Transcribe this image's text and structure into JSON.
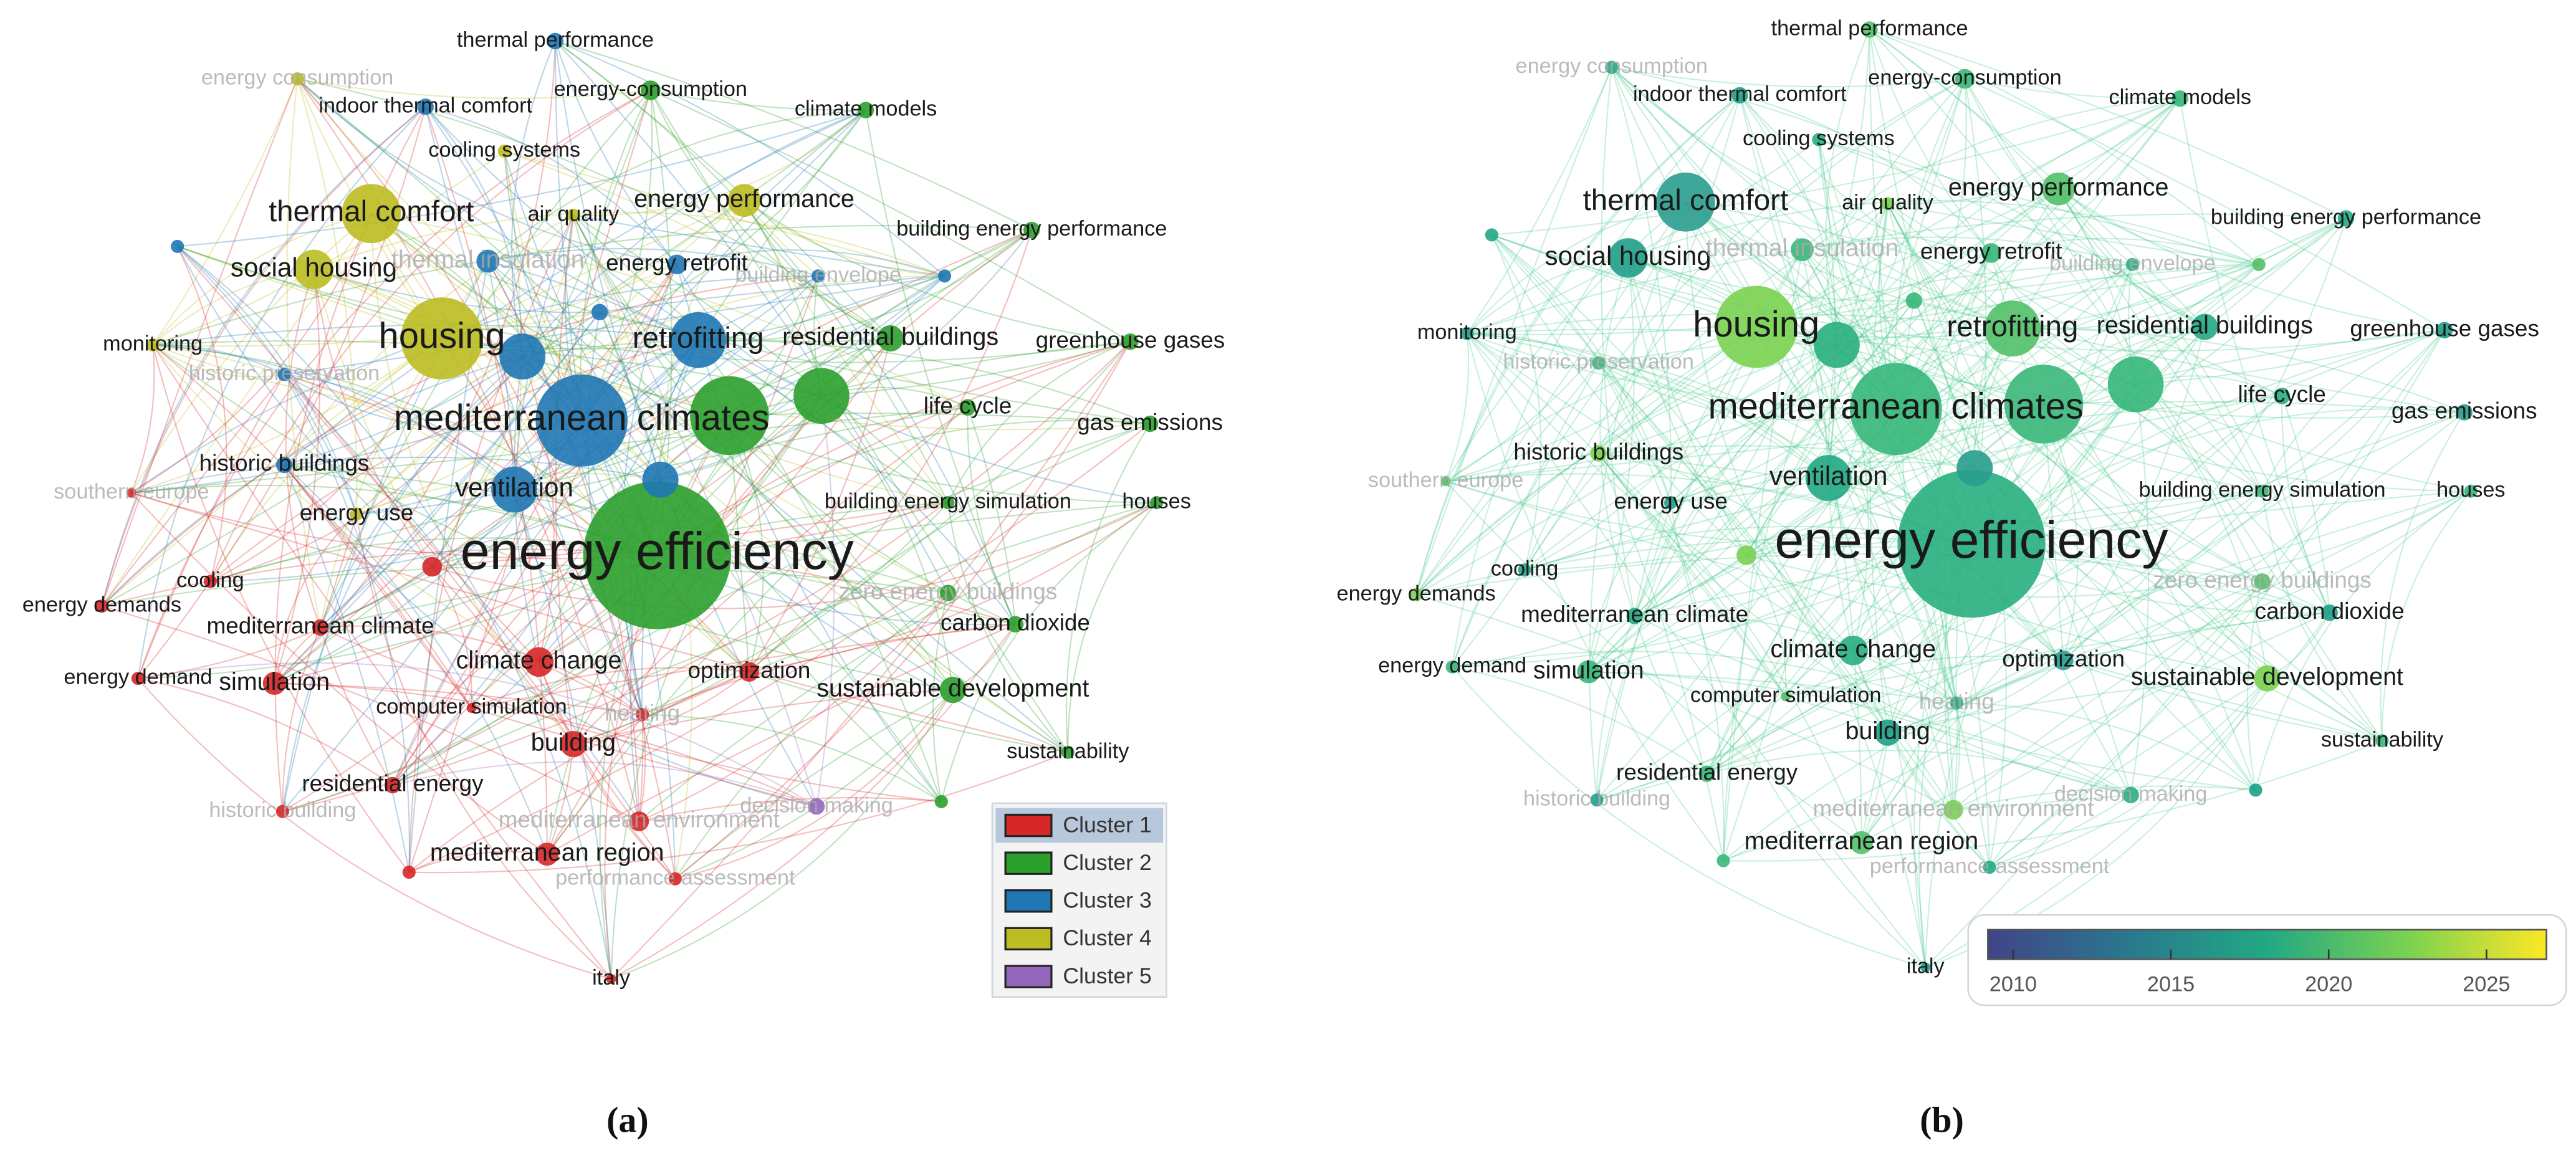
{
  "panels": [
    {
      "caption": "(a)"
    },
    {
      "caption": "(b)"
    }
  ],
  "legend": [
    {
      "label": "Cluster 1",
      "color": "#d62728"
    },
    {
      "label": "Cluster 2",
      "color": "#2ca02c"
    },
    {
      "label": "Cluster 3",
      "color": "#1f77b4"
    },
    {
      "label": "Cluster 4",
      "color": "#bcbd22"
    },
    {
      "label": "Cluster 5",
      "color": "#9467bd"
    }
  ],
  "colorbar": {
    "range": [
      2009.2,
      2026.9
    ],
    "ticks": [
      2010,
      2015,
      2020,
      2025
    ]
  },
  "nodes": [
    {
      "label": "thermal performance",
      "cluster": 2
    },
    {
      "label": "energy consumption",
      "cluster": 3
    },
    {
      "label": "indoor thermal comfort",
      "cluster": 2
    },
    {
      "label": "energy-consumption",
      "cluster": 1
    },
    {
      "label": "climate models",
      "cluster": 1
    },
    {
      "label": "cooling systems",
      "cluster": 3
    },
    {
      "label": "thermal comfort",
      "cluster": 3
    },
    {
      "label": "air quality",
      "cluster": 3
    },
    {
      "label": "energy performance",
      "cluster": 3
    },
    {
      "label": "building energy performance",
      "cluster": 1
    },
    {
      "label": "social housing",
      "cluster": 3
    },
    {
      "label": "thermal insulation",
      "cluster": 2
    },
    {
      "label": "energy retrofit",
      "cluster": 2
    },
    {
      "label": "building envelope",
      "cluster": 2
    },
    {
      "label": "monitoring",
      "cluster": 3
    },
    {
      "label": "housing",
      "cluster": 3
    },
    {
      "label": "retrofitting",
      "cluster": 2
    },
    {
      "label": "residential buildings",
      "cluster": 1
    },
    {
      "label": "greenhouse gases",
      "cluster": 1
    },
    {
      "label": "historic preservation",
      "cluster": 2
    },
    {
      "label": "mediterranean climates",
      "cluster": 2
    },
    {
      "label": "life cycle",
      "cluster": 1
    },
    {
      "label": "gas emissions",
      "cluster": 1
    },
    {
      "label": "historic buildings",
      "cluster": 2
    },
    {
      "label": "southern europe",
      "cluster": 0
    },
    {
      "label": "ventilation",
      "cluster": 2
    },
    {
      "label": "energy use",
      "cluster": 3
    },
    {
      "label": "building energy simulation",
      "cluster": 1
    },
    {
      "label": "houses",
      "cluster": 1
    },
    {
      "label": "energy efficiency",
      "cluster": 1
    },
    {
      "label": "cooling",
      "cluster": 0
    },
    {
      "label": "energy demands",
      "cluster": 0
    },
    {
      "label": "zero energy buildings",
      "cluster": 1
    },
    {
      "label": "mediterranean climate",
      "cluster": 0
    },
    {
      "label": "carbon dioxide",
      "cluster": 1
    },
    {
      "label": "energy demand",
      "cluster": 0
    },
    {
      "label": "simulation",
      "cluster": 0
    },
    {
      "label": "climate change",
      "cluster": 0
    },
    {
      "label": "optimization",
      "cluster": 0
    },
    {
      "label": "sustainable development",
      "cluster": 1
    },
    {
      "label": "computer simulation",
      "cluster": 0
    },
    {
      "label": "heating",
      "cluster": 0
    },
    {
      "label": "building",
      "cluster": 0
    },
    {
      "label": "sustainability",
      "cluster": 1
    },
    {
      "label": "residential energy",
      "cluster": 0
    },
    {
      "label": "decision making",
      "cluster": 4
    },
    {
      "label": "historic building",
      "cluster": 0
    },
    {
      "label": "mediterranean environment",
      "cluster": 0
    },
    {
      "label": "mediterranean region",
      "cluster": 0
    },
    {
      "label": "performance assessment",
      "cluster": 0
    },
    {
      "label": "italy",
      "cluster": 0
    }
  ]
}
